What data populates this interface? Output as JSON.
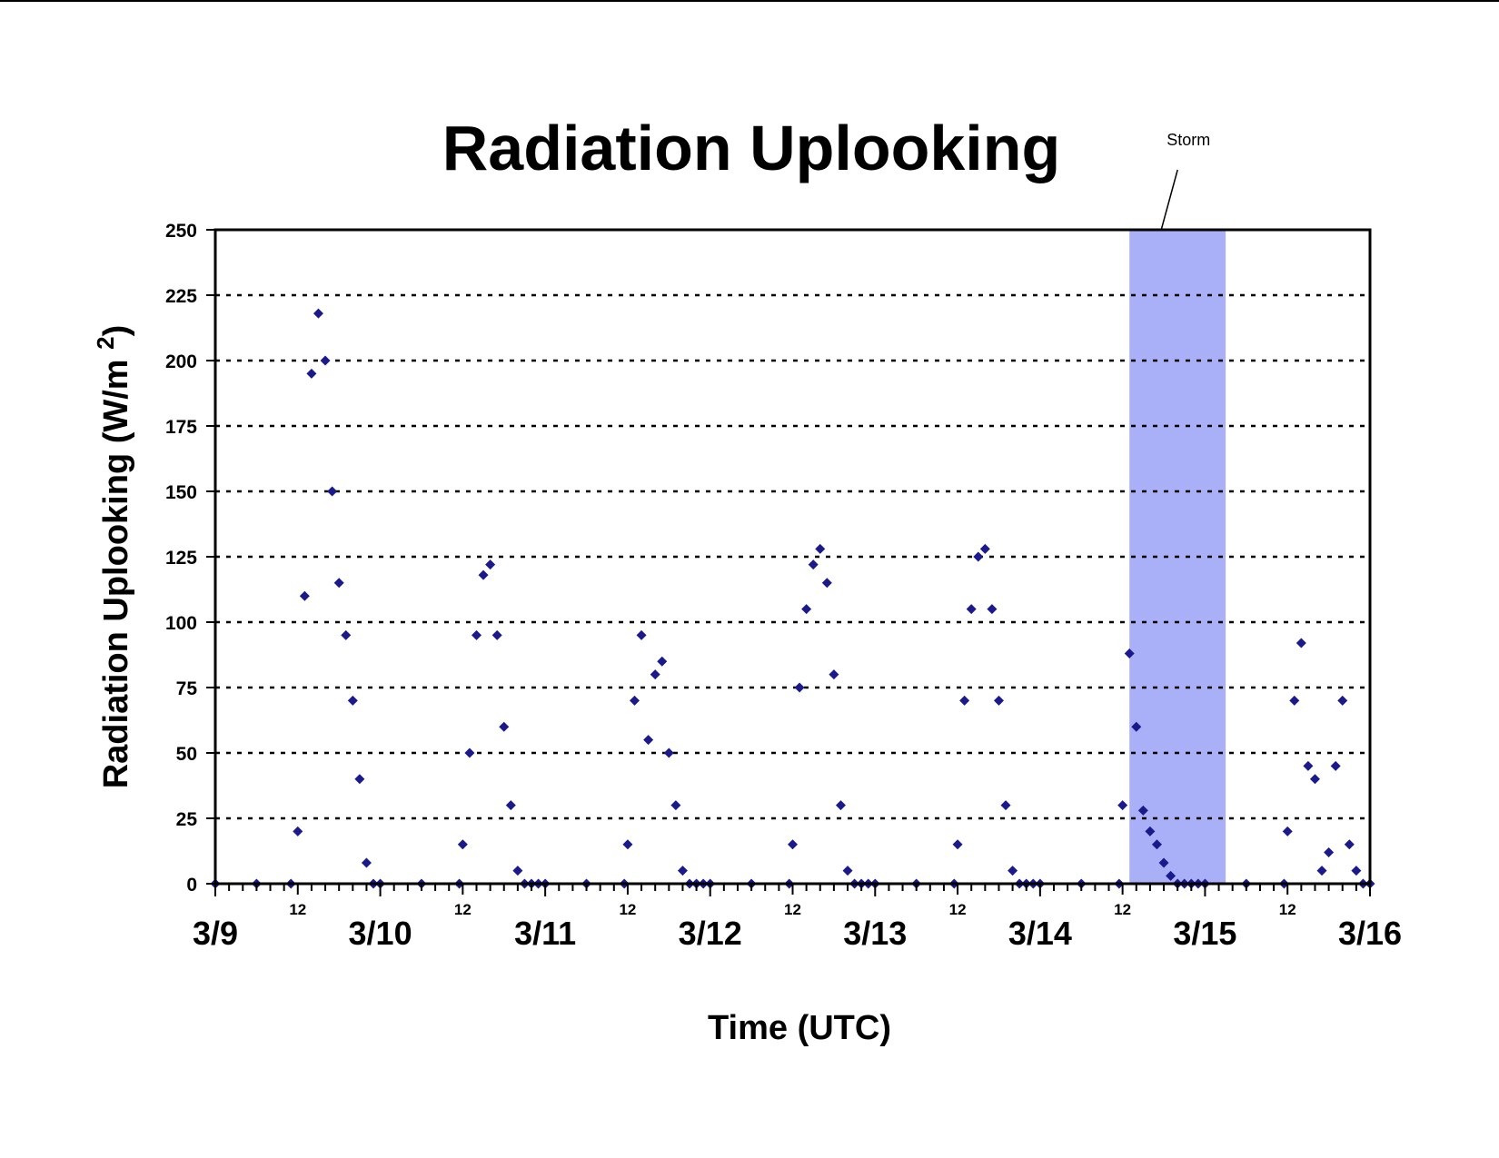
{
  "chart_data": {
    "type": "scatter",
    "title": "Radiation Uplooking",
    "xlabel": "Time (UTC)",
    "ylabel": "Radiation Uplooking (W/m 2)",
    "ylim": [
      0,
      250
    ],
    "yticks": [
      "0",
      "25",
      "50",
      "75",
      "100",
      "125",
      "150",
      "175",
      "200",
      "225",
      "250"
    ],
    "xlim": [
      "3/9 00:00",
      "3/16 00:00"
    ],
    "major_ticks": [
      "3/9",
      "3/10",
      "3/11",
      "3/12",
      "3/13",
      "3/14",
      "3/15",
      "3/16"
    ],
    "minor_tick_label": "12",
    "grid": "horizontal dotted",
    "annotation": {
      "label": "Storm",
      "start": "3/14 13:00",
      "end": "3/15 03:00",
      "color": "#a9b0f7"
    },
    "marker": "diamond",
    "marker_color": "#1a1a8c",
    "series": [
      {
        "x": [
          "3/9 00:00",
          "3/9 06:00",
          "3/9 11:00",
          "3/9 12:00",
          "3/9 13:00",
          "3/9 14:00",
          "3/9 15:00",
          "3/9 16:00",
          "3/9 17:00",
          "3/9 18:00",
          "3/9 19:00",
          "3/9 20:00",
          "3/9 21:00",
          "3/9 22:00",
          "3/9 23:00",
          "3/10 00:00",
          "3/10 06:00",
          "3/10 11:30",
          "3/10 12:00",
          "3/10 13:00",
          "3/10 14:00",
          "3/10 15:00",
          "3/10 16:00",
          "3/10 17:00",
          "3/10 18:00",
          "3/10 19:00",
          "3/10 20:00",
          "3/10 21:00",
          "3/10 22:00",
          "3/10 23:00",
          "3/11 00:00",
          "3/11 06:00",
          "3/11 11:30",
          "3/11 12:00",
          "3/11 13:00",
          "3/11 14:00",
          "3/11 15:00",
          "3/11 16:00",
          "3/11 17:00",
          "3/11 18:00",
          "3/11 19:00",
          "3/11 20:00",
          "3/11 21:00",
          "3/11 22:00",
          "3/11 23:00",
          "3/12 00:00",
          "3/12 06:00",
          "3/12 11:30",
          "3/12 12:00",
          "3/12 13:00",
          "3/12 14:00",
          "3/12 15:00",
          "3/12 16:00",
          "3/12 17:00",
          "3/12 18:00",
          "3/12 19:00",
          "3/12 20:00",
          "3/12 21:00",
          "3/12 22:00",
          "3/12 23:00",
          "3/13 00:00",
          "3/13 06:00",
          "3/13 11:30",
          "3/13 12:00",
          "3/13 13:00",
          "3/13 14:00",
          "3/13 15:00",
          "3/13 16:00",
          "3/13 17:00",
          "3/13 18:00",
          "3/13 19:00",
          "3/13 20:00",
          "3/13 21:00",
          "3/13 22:00",
          "3/13 23:00",
          "3/14 00:00",
          "3/14 06:00",
          "3/14 11:30",
          "3/14 12:00",
          "3/14 13:00",
          "3/14 14:00",
          "3/14 15:00",
          "3/14 16:00",
          "3/14 17:00",
          "3/14 18:00",
          "3/14 19:00",
          "3/14 20:00",
          "3/14 21:00",
          "3/14 22:00",
          "3/14 23:00",
          "3/15 00:00",
          "3/15 06:00",
          "3/15 11:30",
          "3/15 12:00",
          "3/15 13:00",
          "3/15 14:00",
          "3/15 15:00",
          "3/15 16:00",
          "3/15 17:00",
          "3/15 18:00",
          "3/15 19:00",
          "3/15 20:00",
          "3/15 21:00",
          "3/15 22:00",
          "3/15 23:00",
          "3/16 00:00"
        ],
        "y": [
          0,
          0,
          0,
          20,
          110,
          195,
          218,
          200,
          150,
          115,
          95,
          70,
          40,
          8,
          0,
          0,
          0,
          0,
          15,
          50,
          95,
          118,
          122,
          95,
          60,
          30,
          5,
          0,
          0,
          0,
          0,
          0,
          0,
          15,
          70,
          95,
          55,
          80,
          85,
          50,
          30,
          5,
          0,
          0,
          0,
          0,
          0,
          0,
          15,
          75,
          105,
          122,
          128,
          115,
          80,
          30,
          5,
          0,
          0,
          0,
          0,
          0,
          0,
          15,
          70,
          105,
          125,
          128,
          105,
          70,
          30,
          5,
          0,
          0,
          0,
          0,
          0,
          0,
          30,
          88,
          60,
          28,
          20,
          15,
          8,
          3,
          0,
          0,
          0,
          0,
          0,
          0,
          0,
          20,
          70,
          92,
          45,
          40,
          5,
          12,
          45,
          70,
          15,
          5,
          0,
          0
        ]
      }
    ]
  }
}
